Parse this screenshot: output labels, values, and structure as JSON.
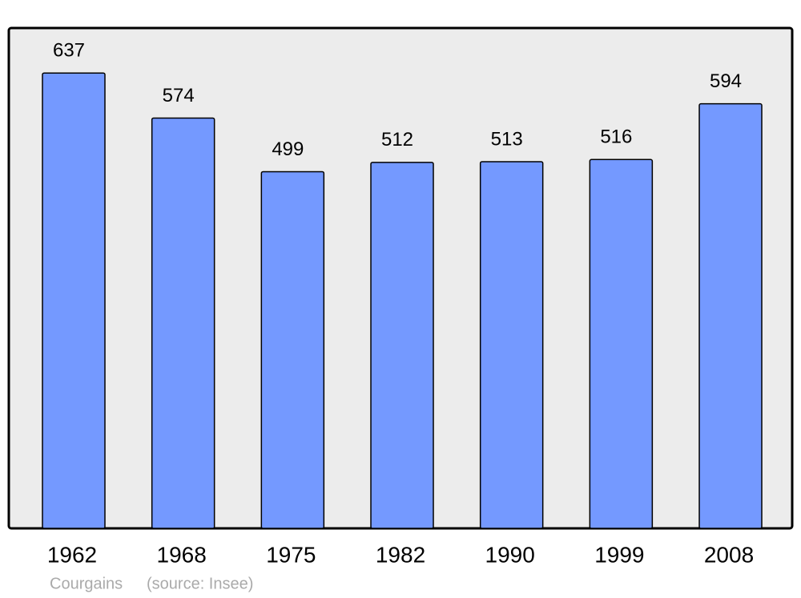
{
  "chart_data": {
    "type": "bar",
    "categories": [
      "1962",
      "1968",
      "1975",
      "1982",
      "1990",
      "1999",
      "2008"
    ],
    "values": [
      637,
      574,
      499,
      512,
      513,
      516,
      594
    ],
    "color": "#7499ff",
    "ylim": [
      0,
      700
    ],
    "place": "Courgains",
    "source": "(source: Insee)"
  }
}
